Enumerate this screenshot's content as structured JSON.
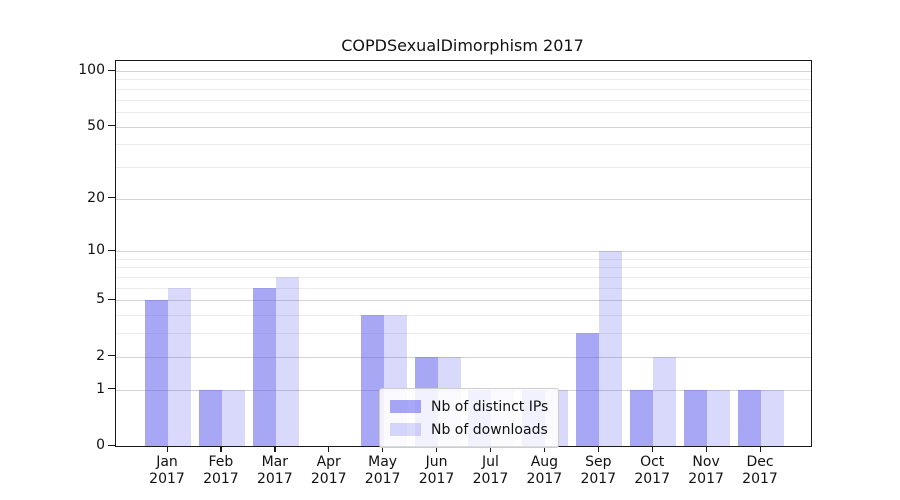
{
  "title": "COPDSexualDimorphism 2017",
  "chart_data": {
    "type": "bar",
    "title": "COPDSexualDimorphism 2017",
    "categories": [
      "Jan 2017",
      "Feb 2017",
      "Mar 2017",
      "Apr 2017",
      "May 2017",
      "Jun 2017",
      "Jul 2017",
      "Aug 2017",
      "Sep 2017",
      "Oct 2017",
      "Nov 2017",
      "Dec 2017"
    ],
    "series": [
      {
        "name": "Nb of distinct IPs",
        "color": "rgba(80,80,235,0.50)",
        "values": [
          5,
          1,
          6,
          0,
          4,
          2,
          1,
          1,
          3,
          1,
          1,
          1
        ]
      },
      {
        "name": "Nb of downloads",
        "color": "rgba(80,80,235,0.22)",
        "values": [
          6,
          1,
          7,
          0,
          4,
          2,
          1,
          1,
          10,
          2,
          1,
          1
        ]
      }
    ],
    "xlabel": "",
    "ylabel": "",
    "yscale": "log1p",
    "yticks": [
      0,
      1,
      2,
      5,
      10,
      20,
      50,
      100
    ],
    "minor_gridlines": [
      3,
      4,
      6,
      7,
      8,
      9,
      30,
      40,
      60,
      70,
      80,
      90
    ],
    "ylim": [
      0,
      113
    ],
    "grid": true,
    "legend_position": "lower-center"
  },
  "colors": {
    "major_gridline": "#d4d4d4",
    "minor_gridline": "#ececec",
    "spine": "#1a1a1a",
    "legend_border": "#cccccc"
  }
}
